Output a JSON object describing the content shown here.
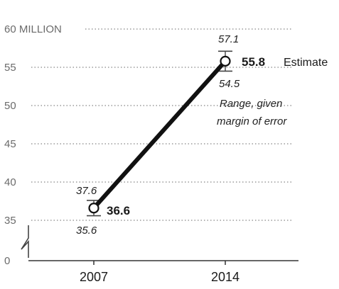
{
  "chart_data": {
    "type": "line",
    "title": "",
    "xlabel": "",
    "ylabel": "",
    "y_unit_label": "60 MILLION",
    "y_ticks": [
      {
        "value": 60,
        "label": "60 MILLION"
      },
      {
        "value": 55,
        "label": "55"
      },
      {
        "value": 50,
        "label": "50"
      },
      {
        "value": 45,
        "label": "45"
      },
      {
        "value": 40,
        "label": "40"
      },
      {
        "value": 35,
        "label": "35"
      },
      {
        "value": 0,
        "label": "0"
      }
    ],
    "axis_break": true,
    "ylim": [
      35,
      60
    ],
    "grid": true,
    "categories": [
      "2007",
      "2014"
    ],
    "points": [
      {
        "x": "2007",
        "value": 36.6,
        "value_label": "36.6",
        "upper": 37.6,
        "upper_label": "37.6",
        "lower": 35.6,
        "lower_label": "35.6"
      },
      {
        "x": "2014",
        "value": 55.8,
        "value_label": "55.8",
        "upper": 57.1,
        "upper_label": "57.1",
        "lower": 54.5,
        "lower_label": "54.5"
      }
    ],
    "annotations": {
      "estimate": "Estimate",
      "range_line1": "Range, given",
      "range_line2": "margin of error"
    }
  }
}
